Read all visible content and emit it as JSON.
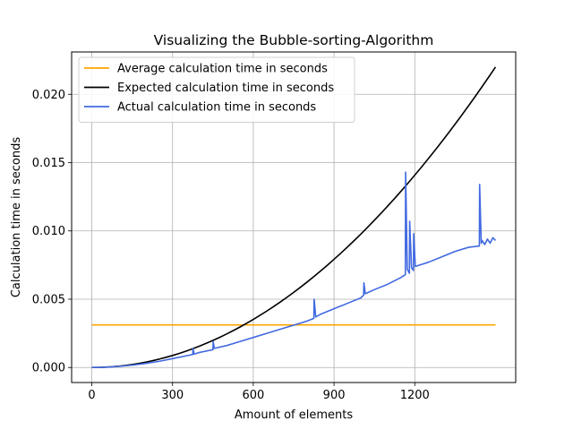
{
  "chart_data": {
    "type": "line",
    "title": "Visualizing the Bubble-sorting-Algorithm",
    "xlabel": "Amount of elements",
    "ylabel": "Calculation time in seconds",
    "xlim": [
      -75,
      1575
    ],
    "ylim": [
      -0.0011,
      0.0231
    ],
    "grid": true,
    "legend": "top-left",
    "x_ticks": [
      0,
      300,
      600,
      900,
      1200
    ],
    "x_tick_labels": [
      "0",
      "300",
      "600",
      "900",
      "1200"
    ],
    "y_ticks": [
      0.0,
      0.005,
      0.01,
      0.015,
      0.02
    ],
    "y_tick_labels": [
      "0.000",
      "0.005",
      "0.010",
      "0.015",
      "0.020"
    ],
    "series": [
      {
        "name": "Average calculation time in seconds",
        "color": "#ffa500",
        "x": [
          0,
          1500
        ],
        "y": [
          0.00312,
          0.00312
        ]
      },
      {
        "name": "Expected calculation time in seconds",
        "color": "#000000",
        "x": [
          0,
          100,
          200,
          300,
          400,
          500,
          600,
          700,
          800,
          900,
          1000,
          1100,
          1200,
          1300,
          1400,
          1500
        ],
        "y": [
          0.0,
          0.0001,
          0.0004,
          0.001,
          0.0018,
          0.0027,
          0.0039,
          0.0053,
          0.007,
          0.0089,
          0.0109,
          0.0132,
          0.0157,
          0.0184,
          0.0213,
          0.022
        ]
      },
      {
        "name": "Actual calculation time in seconds",
        "color": "#4169e1",
        "x": [
          0,
          50,
          100,
          150,
          200,
          250,
          300,
          350,
          375,
          376,
          380,
          400,
          450,
          451,
          455,
          500,
          550,
          600,
          650,
          700,
          750,
          800,
          825,
          826,
          832,
          850,
          900,
          950,
          1000,
          1010,
          1011,
          1016,
          1050,
          1100,
          1150,
          1165,
          1166,
          1172,
          1180,
          1181,
          1188,
          1195,
          1196,
          1202,
          1250,
          1300,
          1350,
          1400,
          1440,
          1441,
          1447,
          1450,
          1460,
          1470,
          1480,
          1490,
          1500
        ],
        "y": [
          0.0,
          2e-05,
          8e-05,
          0.00017,
          0.0003,
          0.00045,
          0.00065,
          0.00085,
          0.00095,
          0.0014,
          0.00098,
          0.0011,
          0.0013,
          0.0019,
          0.0014,
          0.0016,
          0.0019,
          0.0022,
          0.0025,
          0.0028,
          0.0031,
          0.0034,
          0.0036,
          0.005,
          0.0037,
          0.0039,
          0.0043,
          0.0047,
          0.0051,
          0.0053,
          0.0062,
          0.0054,
          0.0057,
          0.0061,
          0.0066,
          0.0068,
          0.0143,
          0.0072,
          0.0069,
          0.0107,
          0.0073,
          0.0071,
          0.0098,
          0.0074,
          0.0077,
          0.0081,
          0.0085,
          0.0088,
          0.0089,
          0.0134,
          0.0091,
          0.0093,
          0.009,
          0.0094,
          0.0091,
          0.0095,
          0.0093
        ]
      }
    ]
  }
}
